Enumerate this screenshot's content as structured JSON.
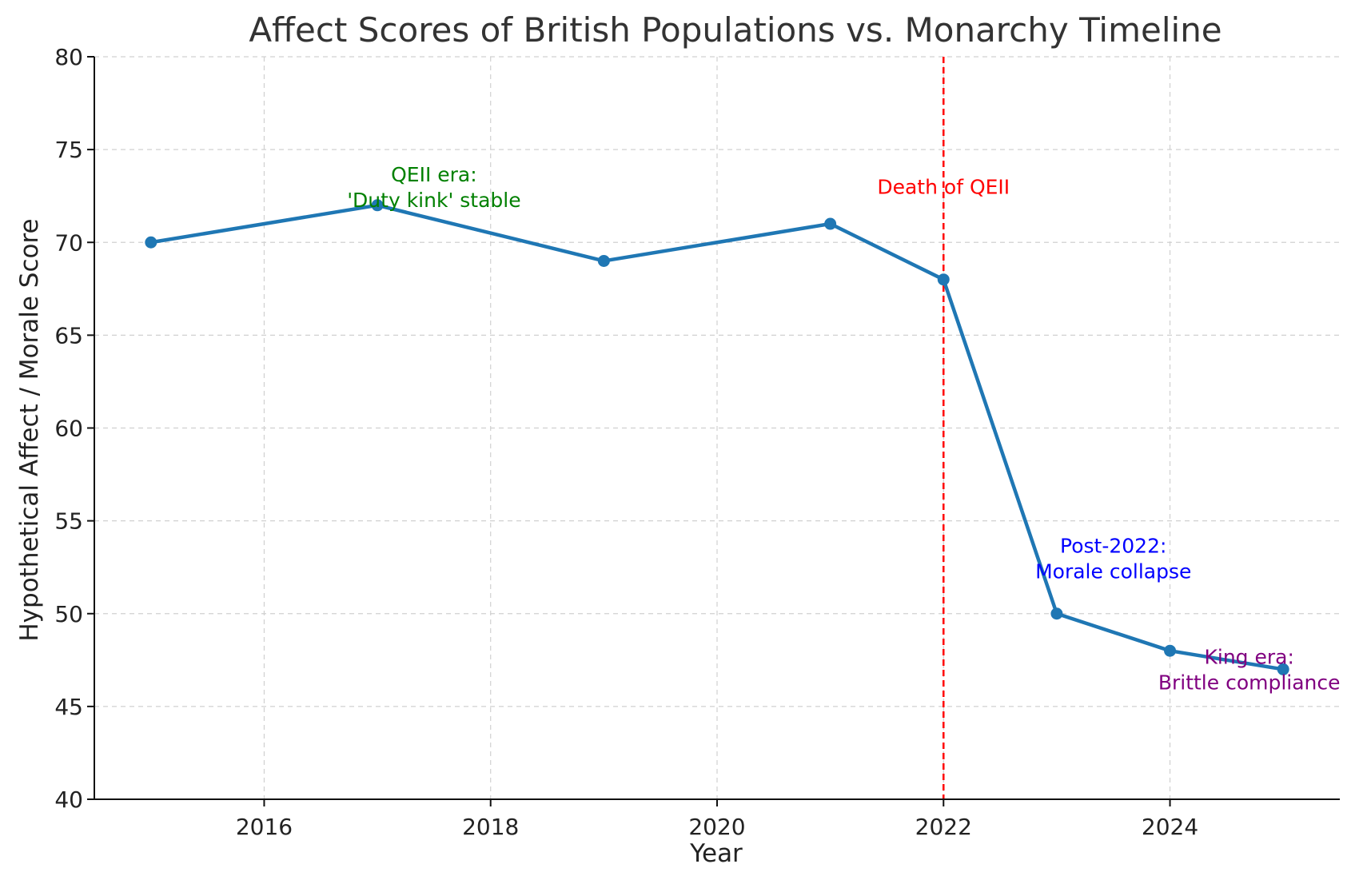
{
  "chart_data": {
    "type": "line",
    "title": "Affect Scores of British Populations vs. Monarchy Timeline",
    "xlabel": "Year",
    "ylabel": "Hypothetical Affect / Morale Score",
    "xlim": [
      2014.5,
      2025.5
    ],
    "ylim": [
      40,
      80
    ],
    "xticks": [
      2016,
      2018,
      2020,
      2022,
      2024
    ],
    "yticks": [
      40,
      45,
      50,
      55,
      60,
      65,
      70,
      75,
      80
    ],
    "grid": true,
    "series": [
      {
        "x": [
          2015,
          2017,
          2019,
          2021,
          2022,
          2023,
          2024,
          2025
        ],
        "values": [
          70,
          72,
          69,
          71,
          68,
          50,
          48,
          47
        ],
        "color": "#1f77b4"
      }
    ],
    "vline": {
      "x": 2022,
      "color": "#ff0000",
      "label": "Death of QEII"
    },
    "annotations": [
      {
        "line1": "QEII era:",
        "line2": "'Duty kink' stable",
        "x": 2017.5,
        "y": 72.6,
        "color": "#008000"
      },
      {
        "line1": "Post-2022:",
        "line2": "Morale collapse",
        "x": 2023.5,
        "y": 52.6,
        "color": "#0000ff"
      },
      {
        "line1": "King era:",
        "line2": "Brittle compliance",
        "x": 2024.7,
        "y": 46.6,
        "color": "#800080"
      }
    ]
  }
}
